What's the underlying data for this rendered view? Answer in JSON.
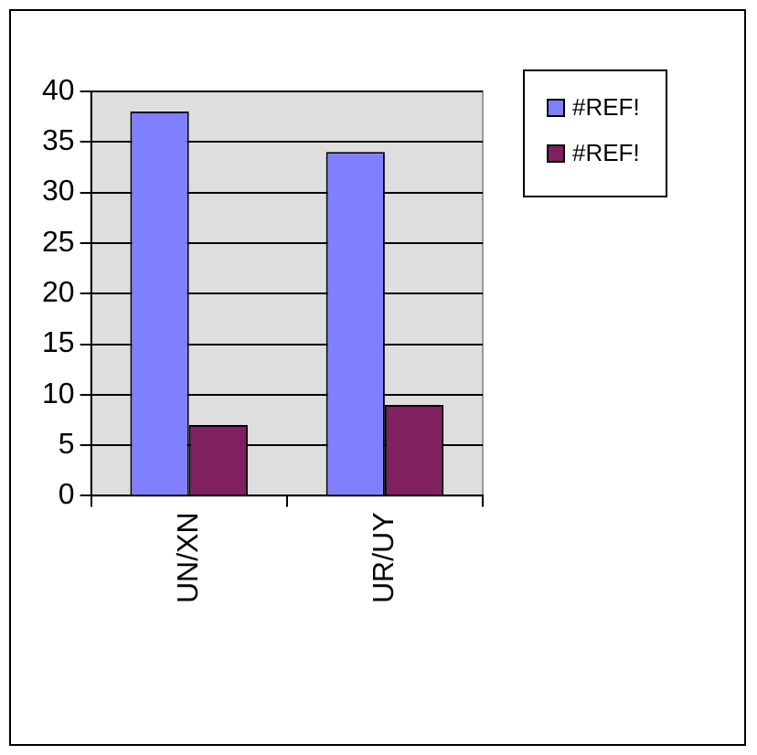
{
  "chart_data": {
    "type": "bar",
    "categories": [
      "UN/XN",
      "UR/UY"
    ],
    "series": [
      {
        "name": "#REF!",
        "color": "#8080ff",
        "values": [
          38,
          34
        ]
      },
      {
        "name": "#REF!",
        "color": "#802060",
        "values": [
          7,
          9
        ]
      }
    ],
    "ylim": [
      0,
      40
    ],
    "yticks": [
      0,
      5,
      10,
      15,
      20,
      25,
      30,
      35,
      40
    ],
    "grid": "y",
    "legend": "top right"
  }
}
